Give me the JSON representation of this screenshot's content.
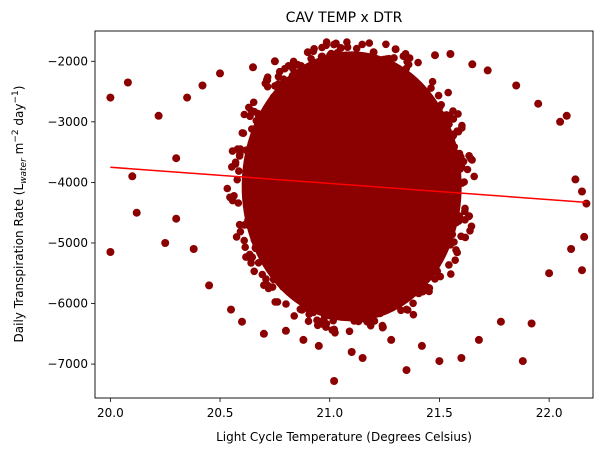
{
  "chart_data": {
    "type": "scatter",
    "title": "CAV TEMP x DTR",
    "xlabel": "Light Cycle Temperature (Degrees Celsius)",
    "ylabel_main": "Daily Transpiration Rate (L",
    "ylabel_sub": "water",
    "ylabel_rest": " m",
    "ylabel_sup1": "−2",
    "ylabel_day": " day",
    "ylabel_sup2": "−1",
    "ylabel_close": ")",
    "xlim": [
      19.93,
      22.2
    ],
    "ylim": [
      -7560,
      -1500
    ],
    "x_ticks": [
      20.0,
      20.5,
      21.0,
      21.5,
      22.0
    ],
    "x_tick_labels": [
      "20.0",
      "20.5",
      "21.0",
      "21.5",
      "22.0"
    ],
    "y_ticks": [
      -7000,
      -6000,
      -5000,
      -4000,
      -3000,
      -2000
    ],
    "y_tick_labels": [
      "−7000",
      "−6000",
      "−5000",
      "−4000",
      "−3000",
      "−2000"
    ],
    "grid": false,
    "colors": {
      "points": "#8b0000",
      "fit_line": "#ff0000"
    },
    "fit_line": {
      "x": [
        20.0,
        22.17
      ],
      "y": [
        -3750,
        -4330
      ]
    },
    "cloud_center": {
      "x": 21.1,
      "y": -4000
    },
    "points": [
      {
        "x": 20.0,
        "y": -2600
      },
      {
        "x": 20.0,
        "y": -5150
      },
      {
        "x": 20.08,
        "y": -2350
      },
      {
        "x": 20.1,
        "y": -3900
      },
      {
        "x": 20.12,
        "y": -4500
      },
      {
        "x": 20.22,
        "y": -2900
      },
      {
        "x": 20.25,
        "y": -5000
      },
      {
        "x": 20.3,
        "y": -3600
      },
      {
        "x": 20.3,
        "y": -4600
      },
      {
        "x": 20.35,
        "y": -2600
      },
      {
        "x": 20.38,
        "y": -5100
      },
      {
        "x": 20.42,
        "y": -2400
      },
      {
        "x": 20.45,
        "y": -5700
      },
      {
        "x": 20.5,
        "y": -2200
      },
      {
        "x": 20.55,
        "y": -6100
      },
      {
        "x": 20.6,
        "y": -6300
      },
      {
        "x": 20.65,
        "y": -2100
      },
      {
        "x": 20.7,
        "y": -6500
      },
      {
        "x": 20.75,
        "y": -2000
      },
      {
        "x": 20.8,
        "y": -6450
      },
      {
        "x": 20.88,
        "y": -6600
      },
      {
        "x": 20.9,
        "y": -1850
      },
      {
        "x": 20.95,
        "y": -6700
      },
      {
        "x": 21.02,
        "y": -7280
      },
      {
        "x": 21.05,
        "y": -1780
      },
      {
        "x": 21.1,
        "y": -6800
      },
      {
        "x": 21.15,
        "y": -6900
      },
      {
        "x": 21.2,
        "y": -1850
      },
      {
        "x": 21.28,
        "y": -6600
      },
      {
        "x": 21.3,
        "y": -1800
      },
      {
        "x": 21.35,
        "y": -7100
      },
      {
        "x": 21.42,
        "y": -6700
      },
      {
        "x": 21.48,
        "y": -1900
      },
      {
        "x": 21.5,
        "y": -6950
      },
      {
        "x": 21.55,
        "y": -1880
      },
      {
        "x": 21.6,
        "y": -6900
      },
      {
        "x": 21.65,
        "y": -2050
      },
      {
        "x": 21.68,
        "y": -6600
      },
      {
        "x": 21.72,
        "y": -2150
      },
      {
        "x": 21.78,
        "y": -6300
      },
      {
        "x": 21.85,
        "y": -2400
      },
      {
        "x": 21.88,
        "y": -6950
      },
      {
        "x": 21.92,
        "y": -6330
      },
      {
        "x": 21.95,
        "y": -2700
      },
      {
        "x": 22.05,
        "y": -3000
      },
      {
        "x": 22.08,
        "y": -2900
      },
      {
        "x": 22.1,
        "y": -5100
      },
      {
        "x": 22.12,
        "y": -3950
      },
      {
        "x": 22.15,
        "y": -4150
      },
      {
        "x": 22.17,
        "y": -4350
      },
      {
        "x": 22.16,
        "y": -4900
      },
      {
        "x": 22.15,
        "y": -5450
      },
      {
        "x": 22.0,
        "y": -5500
      }
    ]
  }
}
